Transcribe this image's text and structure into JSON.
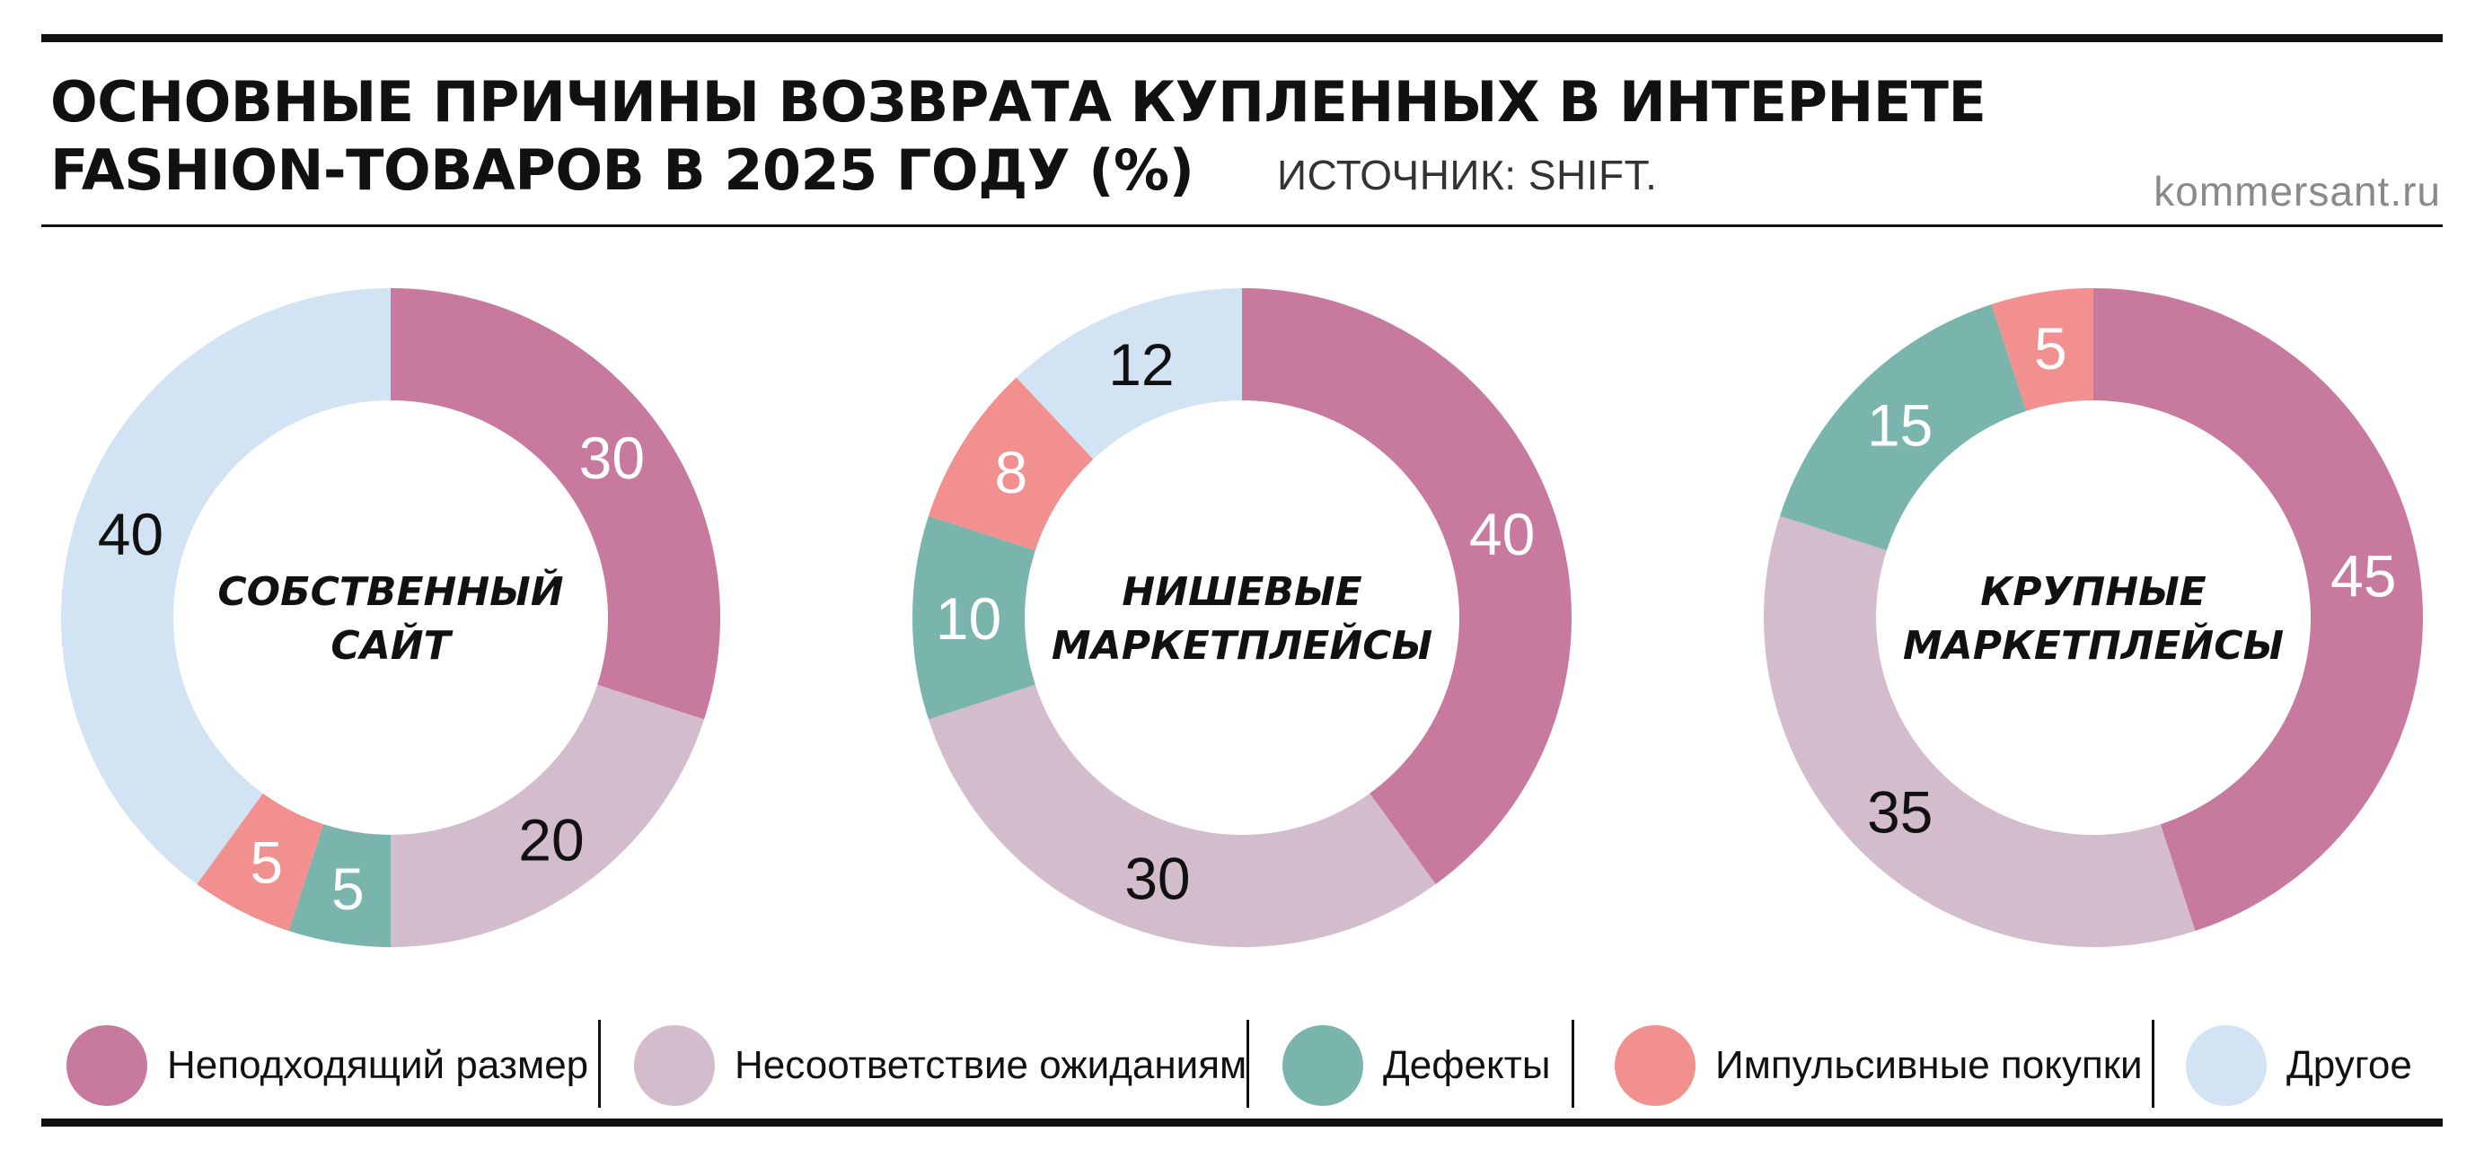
{
  "header": {
    "title_line1": "ОСНОВНЫЕ ПРИЧИНЫ ВОЗВРАТА КУПЛЕННЫХ В ИНТЕРНЕТЕ",
    "title_line2": "FASHION-ТОВАРОВ В 2025 ГОДУ (%)",
    "source": "ИСТОЧНИК: SHIFT.",
    "site": "kommersant.ru"
  },
  "colors": {
    "size": "#c77a9e",
    "expectations": "#d3bccb",
    "defects": "#79b5ad",
    "impulse": "#f28f8f",
    "other": "#d2e3f4"
  },
  "legend": [
    {
      "key": "size",
      "label": "Неподходящий размер"
    },
    {
      "key": "expectations",
      "label": "Несоответствие ожиданиям"
    },
    {
      "key": "defects",
      "label": "Дефекты"
    },
    {
      "key": "impulse",
      "label": "Импульсивные покупки"
    },
    {
      "key": "other",
      "label": "Другое"
    }
  ],
  "chart_data": [
    {
      "type": "pie",
      "title": "СОБСТВЕННЫЙ САЙТ",
      "categories": [
        "Неподходящий размер",
        "Несоответствие ожиданиям",
        "Дефекты",
        "Импульсивные покупки",
        "Другое"
      ],
      "values": [
        30,
        20,
        5,
        5,
        40
      ]
    },
    {
      "type": "pie",
      "title": "НИШЕВЫЕ МАРКЕТПЛЕЙСЫ",
      "categories": [
        "Неподходящий размер",
        "Несоответствие ожиданиям",
        "Дефекты",
        "Импульсивные покупки",
        "Другое"
      ],
      "values": [
        40,
        30,
        10,
        8,
        12
      ]
    },
    {
      "type": "pie",
      "title": "КРУПНЫЕ МАРКЕТПЛЕЙСЫ",
      "categories": [
        "Неподходящий размер",
        "Несоответствие ожиданиям",
        "Дефекты",
        "Импульсивные покупки"
      ],
      "values": [
        45,
        35,
        15,
        5
      ]
    }
  ]
}
